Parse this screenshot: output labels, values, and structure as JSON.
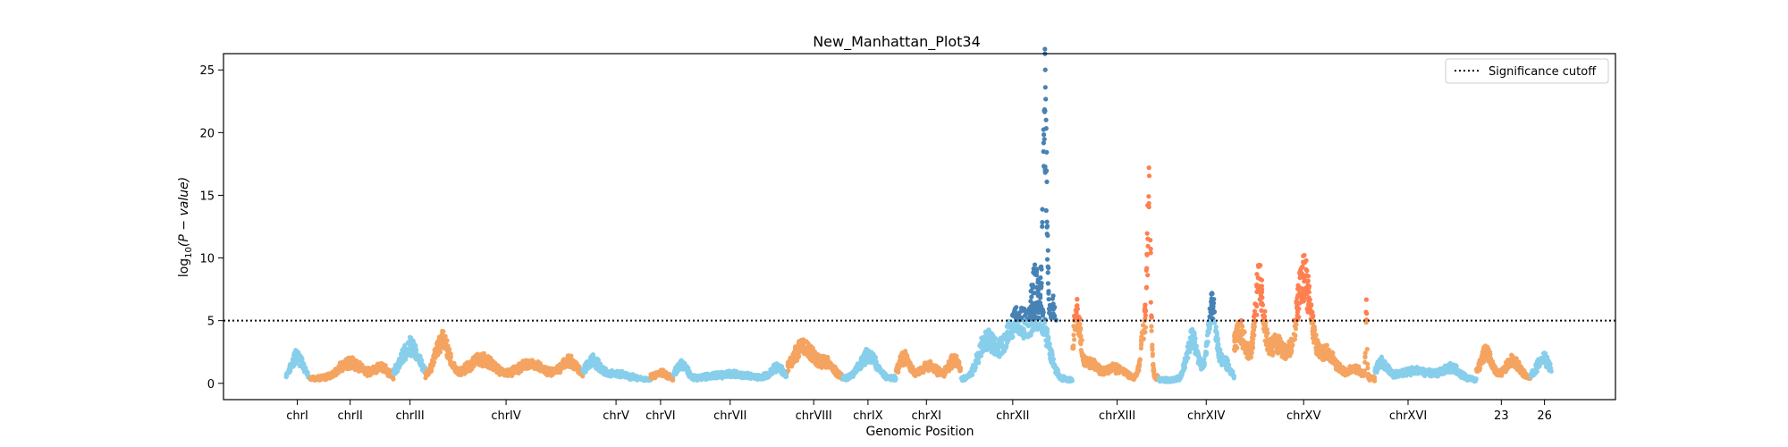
{
  "chart_data": {
    "type": "scatter",
    "title": "New_Manhattan_Plot34",
    "xlabel": "Genomic Position",
    "ylabel": "log10(P − value)",
    "ylabel_parts": {
      "prefix": "log",
      "subscript": "10",
      "suffix": "(P − value)"
    },
    "xlim": [
      0,
      100
    ],
    "ylim": [
      -1.3,
      26.3
    ],
    "y_ticks": [
      0,
      5,
      10,
      15,
      20,
      25
    ],
    "x_ticks": [
      {
        "label": "chrI",
        "x": 5.3
      },
      {
        "label": "chrII",
        "x": 9.1
      },
      {
        "label": "chrIII",
        "x": 13.4
      },
      {
        "label": "chrIV",
        "x": 20.3
      },
      {
        "label": "chrV",
        "x": 28.2
      },
      {
        "label": "chrVI",
        "x": 31.4
      },
      {
        "label": "chrVII",
        "x": 36.4
      },
      {
        "label": "chrVIII",
        "x": 42.4
      },
      {
        "label": "chrIX",
        "x": 46.3
      },
      {
        "label": "chrXI",
        "x": 50.5
      },
      {
        "label": "chrXII",
        "x": 56.7
      },
      {
        "label": "chrXIII",
        "x": 64.2
      },
      {
        "label": "chrXIV",
        "x": 70.6
      },
      {
        "label": "chrXV",
        "x": 77.6
      },
      {
        "label": "chrXVI",
        "x": 85.1
      },
      {
        "label": "23",
        "x": 91.8
      },
      {
        "label": "26",
        "x": 94.9
      }
    ],
    "significance_cutoff": 5,
    "legend": {
      "label": "Significance cutoff",
      "placement": "upper-right"
    },
    "grid": false,
    "colors": {
      "skyblue": "#87ceeb",
      "sandybrown": "#f4a460",
      "significant_blue": "#4682b4",
      "significant_coral": "#ff7f50"
    },
    "segments": [
      {
        "x": [
          4.5,
          6.2
        ],
        "base": 0.5,
        "peaks": [
          [
            5.3,
            1.8,
            0.4
          ]
        ],
        "color": "skyblue",
        "sig_color": "significant_blue"
      },
      {
        "x": [
          6.2,
          12.2
        ],
        "base": 0.4,
        "peaks": [
          [
            9.1,
            1.4,
            0.8
          ],
          [
            11.3,
            1.0,
            0.5
          ]
        ],
        "color": "sandybrown",
        "sig_color": "significant_coral"
      },
      {
        "x": [
          12.2,
          14.5
        ],
        "base": 0.6,
        "peaks": [
          [
            13.4,
            2.6,
            0.6
          ]
        ],
        "color": "skyblue",
        "sig_color": "significant_blue"
      },
      {
        "x": [
          14.5,
          25.8
        ],
        "base": 0.5,
        "peaks": [
          [
            15.7,
            3.2,
            0.5
          ],
          [
            18.5,
            1.6,
            0.9
          ],
          [
            22.0,
            1.2,
            0.9
          ],
          [
            24.8,
            1.4,
            0.6
          ]
        ],
        "color": "sandybrown",
        "sig_color": "significant_coral"
      },
      {
        "x": [
          25.8,
          30.7
        ],
        "base": 0.3,
        "peaks": [
          [
            26.5,
            1.6,
            0.5
          ],
          [
            28.2,
            0.5,
            1.0
          ]
        ],
        "color": "skyblue",
        "sig_color": "significant_blue"
      },
      {
        "x": [
          30.7,
          32.3
        ],
        "base": 0.3,
        "peaks": [
          [
            31.4,
            0.6,
            0.5
          ]
        ],
        "color": "sandybrown",
        "sig_color": "significant_coral"
      },
      {
        "x": [
          32.3,
          40.5
        ],
        "base": 0.3,
        "peaks": [
          [
            32.9,
            1.3,
            0.4
          ],
          [
            36.4,
            0.5,
            1.5
          ],
          [
            39.8,
            1.0,
            0.5
          ]
        ],
        "color": "skyblue",
        "sig_color": "significant_blue"
      },
      {
        "x": [
          40.5,
          44.5
        ],
        "base": 0.6,
        "peaks": [
          [
            41.7,
            2.5,
            0.8
          ],
          [
            43.4,
            1.0,
            0.4
          ]
        ],
        "color": "sandybrown",
        "sig_color": "significant_coral"
      },
      {
        "x": [
          44.5,
          48.3
        ],
        "base": 0.4,
        "peaks": [
          [
            46.3,
            2.0,
            0.6
          ]
        ],
        "color": "skyblue",
        "sig_color": "significant_blue"
      },
      {
        "x": [
          48.3,
          53.0
        ],
        "base": 0.4,
        "peaks": [
          [
            48.9,
            1.8,
            0.4
          ],
          [
            50.7,
            1.1,
            0.6
          ],
          [
            52.5,
            1.6,
            0.4
          ]
        ],
        "color": "sandybrown",
        "sig_color": "significant_coral"
      },
      {
        "x": [
          53.0,
          61.0
        ],
        "base": 0.3,
        "peaks": [
          [
            54.8,
            3.2,
            0.6
          ],
          [
            57.0,
            5.0,
            0.9
          ],
          [
            58.7,
            4.5,
            0.6
          ]
        ],
        "color": "skyblue",
        "sig_color": "significant_blue"
      },
      {
        "x": [
          57.5,
          60.0
        ],
        "base": 0.0,
        "peaks": [
          [
            59.0,
            21.0,
            0.15
          ],
          [
            58.3,
            8.5,
            0.4
          ],
          [
            59.6,
            6.0,
            0.3
          ]
        ],
        "color": "significant_blue",
        "sig_color": "significant_blue",
        "sig_only": true
      },
      {
        "x": [
          61.0,
          65.3
        ],
        "base": 0.3,
        "peaks": [
          [
            61.3,
            5.5,
            0.25
          ],
          [
            62.2,
            1.5,
            0.5
          ],
          [
            64.0,
            1.0,
            0.8
          ]
        ],
        "color": "sandybrown",
        "sig_color": "significant_coral"
      },
      {
        "x": [
          65.3,
          67.2
        ],
        "base": 0.5,
        "peaks": [
          [
            66.5,
            13.0,
            0.12
          ],
          [
            66.2,
            4.5,
            0.25
          ]
        ],
        "color": "sandybrown",
        "sig_color": "significant_coral"
      },
      {
        "x": [
          67.2,
          72.6
        ],
        "base": 0.3,
        "peaks": [
          [
            69.6,
            3.5,
            0.4
          ],
          [
            71.0,
            6.0,
            0.3
          ],
          [
            71.9,
            1.5,
            0.4
          ]
        ],
        "color": "skyblue",
        "sig_color": "significant_blue"
      },
      {
        "x": [
          72.6,
          82.7
        ],
        "base": 0.4,
        "peaks": [
          [
            73.0,
            4.0,
            0.5
          ],
          [
            74.4,
            7.5,
            0.3
          ],
          [
            75.6,
            3.0,
            0.8
          ],
          [
            77.6,
            8.5,
            0.5
          ],
          [
            79.2,
            2.2,
            0.7
          ],
          [
            81.3,
            0.8,
            0.5
          ],
          [
            82.1,
            6.0,
            0.05
          ]
        ],
        "color": "sandybrown",
        "sig_color": "significant_coral"
      },
      {
        "x": [
          82.7,
          90.0
        ],
        "base": 0.3,
        "peaks": [
          [
            83.2,
            1.4,
            0.4
          ],
          [
            85.6,
            0.8,
            1.2
          ],
          [
            88.2,
            1.0,
            0.6
          ]
        ],
        "color": "skyblue",
        "sig_color": "significant_blue"
      },
      {
        "x": [
          90.0,
          93.9
        ],
        "base": 0.5,
        "peaks": [
          [
            90.7,
            2.2,
            0.4
          ],
          [
            92.6,
            1.4,
            0.5
          ]
        ],
        "color": "sandybrown",
        "sig_color": "significant_coral"
      },
      {
        "x": [
          93.9,
          95.4
        ],
        "base": 0.6,
        "peaks": [
          [
            94.8,
            1.6,
            0.4
          ]
        ],
        "color": "skyblue",
        "sig_color": "significant_blue"
      }
    ]
  }
}
